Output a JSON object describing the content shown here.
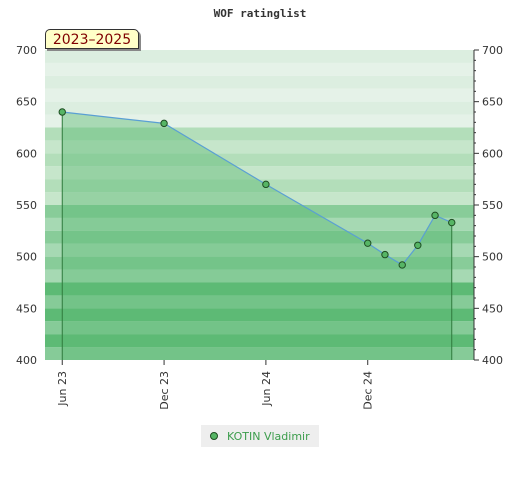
{
  "chart_data": {
    "type": "area",
    "title": "WOF ratinglist",
    "period_label": "2023–2025",
    "ylim": [
      400,
      700
    ],
    "y_ticks": [
      400,
      450,
      500,
      550,
      600,
      650,
      700
    ],
    "y_tick_labels": [
      "400",
      "450",
      "500",
      "550",
      "600",
      "650",
      "700"
    ],
    "x_range": [
      "2023-05-01",
      "2025-06-10"
    ],
    "x_ticks": [
      {
        "date": "2023-06-01",
        "label": "Jun 23"
      },
      {
        "date": "2023-12-01",
        "label": "Dec 23"
      },
      {
        "date": "2024-06-01",
        "label": "Jun 24"
      },
      {
        "date": "2024-12-01",
        "label": "Dec 24"
      }
    ],
    "series": [
      {
        "name": "KOTIN Vladimir",
        "points": [
          {
            "x": "2023-06-01",
            "y": 640
          },
          {
            "x": "2023-12-01",
            "y": 629
          },
          {
            "x": "2024-06-01",
            "y": 570
          },
          {
            "x": "2024-12-01",
            "y": 513
          },
          {
            "x": "2025-01-01",
            "y": 502
          },
          {
            "x": "2025-02-01",
            "y": 492
          },
          {
            "x": "2025-03-01",
            "y": 511
          },
          {
            "x": "2025-04-01",
            "y": 540
          },
          {
            "x": "2025-05-01",
            "y": 533
          }
        ]
      }
    ],
    "band_colors": [
      "#5dba75",
      "#88cc99",
      "#b3deba",
      "#dceee0"
    ],
    "line_color": "#5a9fd4",
    "marker_color": "#56b565",
    "legend_text_color": "#3c9d4c",
    "legend_position": "bottom-center",
    "grid": true
  }
}
